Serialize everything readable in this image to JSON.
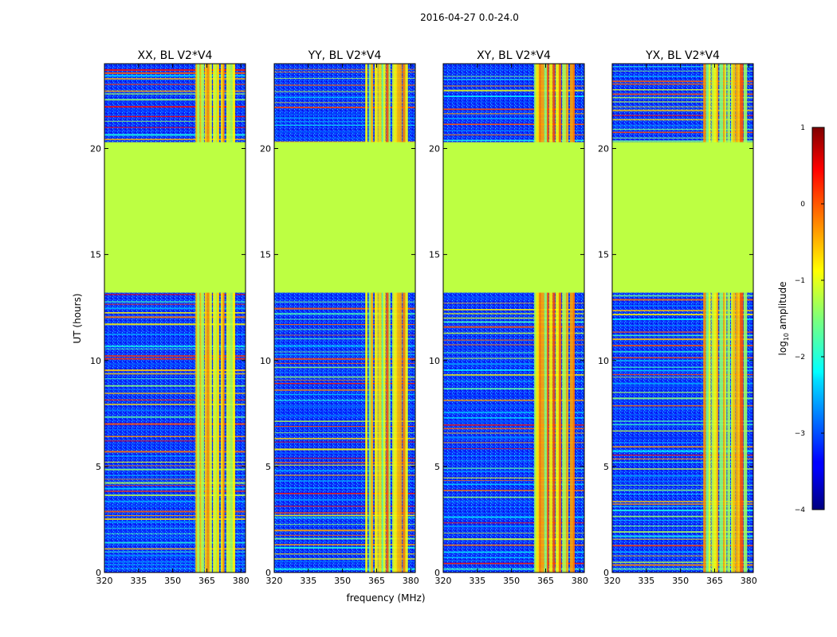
{
  "chart_data": {
    "type": "heatmap",
    "suptitle": "2016-04-27 0.0-24.0",
    "xlabel": "frequency (MHz)",
    "ylabel": "UT (hours)",
    "xlim": [
      320,
      382
    ],
    "ylim": [
      0,
      24
    ],
    "xticks": [
      320,
      335,
      350,
      365,
      380
    ],
    "xtick_labels": [
      "320",
      "335",
      "350",
      "365",
      "380"
    ],
    "yticks": [
      0,
      5,
      10,
      15,
      20
    ],
    "ytick_labels": [
      "0",
      "5",
      "10",
      "15",
      "20"
    ],
    "gap_hours": [
      13.2,
      20.3
    ],
    "gap_log_amplitude": -1.2,
    "rfi_band_mhz": [
      360,
      378
    ],
    "panels": [
      {
        "title": "XX, BL V2*V4"
      },
      {
        "title": "YY, BL V2*V4"
      },
      {
        "title": "XY, BL V2*V4"
      },
      {
        "title": "YX, BL V2*V4"
      }
    ],
    "colorbar": {
      "label_prefix": "log",
      "label_sub": "10",
      "label_suffix": " amplitude",
      "colormap": "jet",
      "range": [
        -4,
        1
      ],
      "ticks": [
        1,
        0,
        -1,
        -2,
        -3,
        -4
      ],
      "tick_labels": [
        "1",
        "0",
        "−1",
        "−2",
        "−3",
        "−4"
      ]
    }
  }
}
